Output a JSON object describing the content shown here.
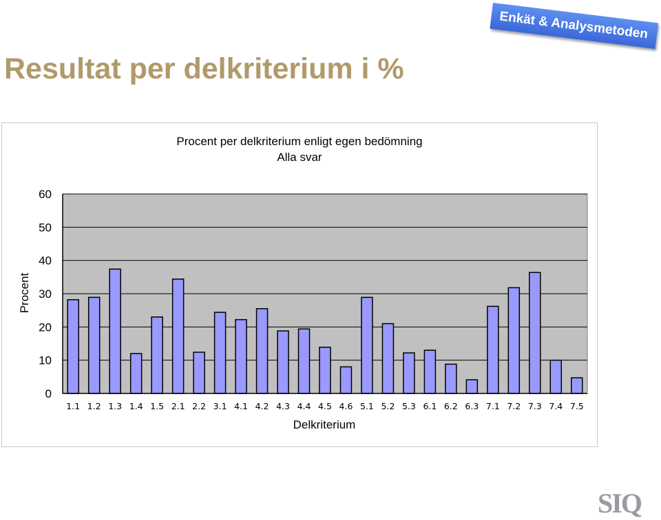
{
  "slide": {
    "title": "Resultat per delkriterium i %",
    "banner_text": "Enkät & Analysmetoden",
    "logo_text": "SIQ"
  },
  "chart_data": {
    "type": "bar",
    "title": "Procent per delkriterium enligt egen bedömning",
    "subtitle": "Alla svar",
    "xlabel": "Delkriterium",
    "ylabel": "Procent",
    "ylim": [
      0,
      60
    ],
    "yticks": [
      0,
      10,
      20,
      30,
      40,
      50,
      60
    ],
    "grid": true,
    "legend": "none",
    "categories": [
      "1.1",
      "1.2",
      "1.3",
      "1.4",
      "1.5",
      "2.1",
      "2.2",
      "3.1",
      "4.1",
      "4.2",
      "4.3",
      "4.4",
      "4.5",
      "4.6",
      "5.1",
      "5.2",
      "5.3",
      "6.1",
      "6.2",
      "6.3",
      "7.1",
      "7.2",
      "7.3",
      "7.4",
      "7.5"
    ],
    "values": [
      28.2,
      28.9,
      37.4,
      12.0,
      23.0,
      34.4,
      12.4,
      24.4,
      22.2,
      25.5,
      18.8,
      19.4,
      13.9,
      8.0,
      28.9,
      21.0,
      12.2,
      13.0,
      8.8,
      4.1,
      26.2,
      31.8,
      36.4,
      10.0,
      4.7
    ],
    "colors": {
      "bar_fill": "#9999ff",
      "bar_stroke": "#000000",
      "plot_background": "#c0c0c0",
      "grid_line": "#000000"
    }
  }
}
